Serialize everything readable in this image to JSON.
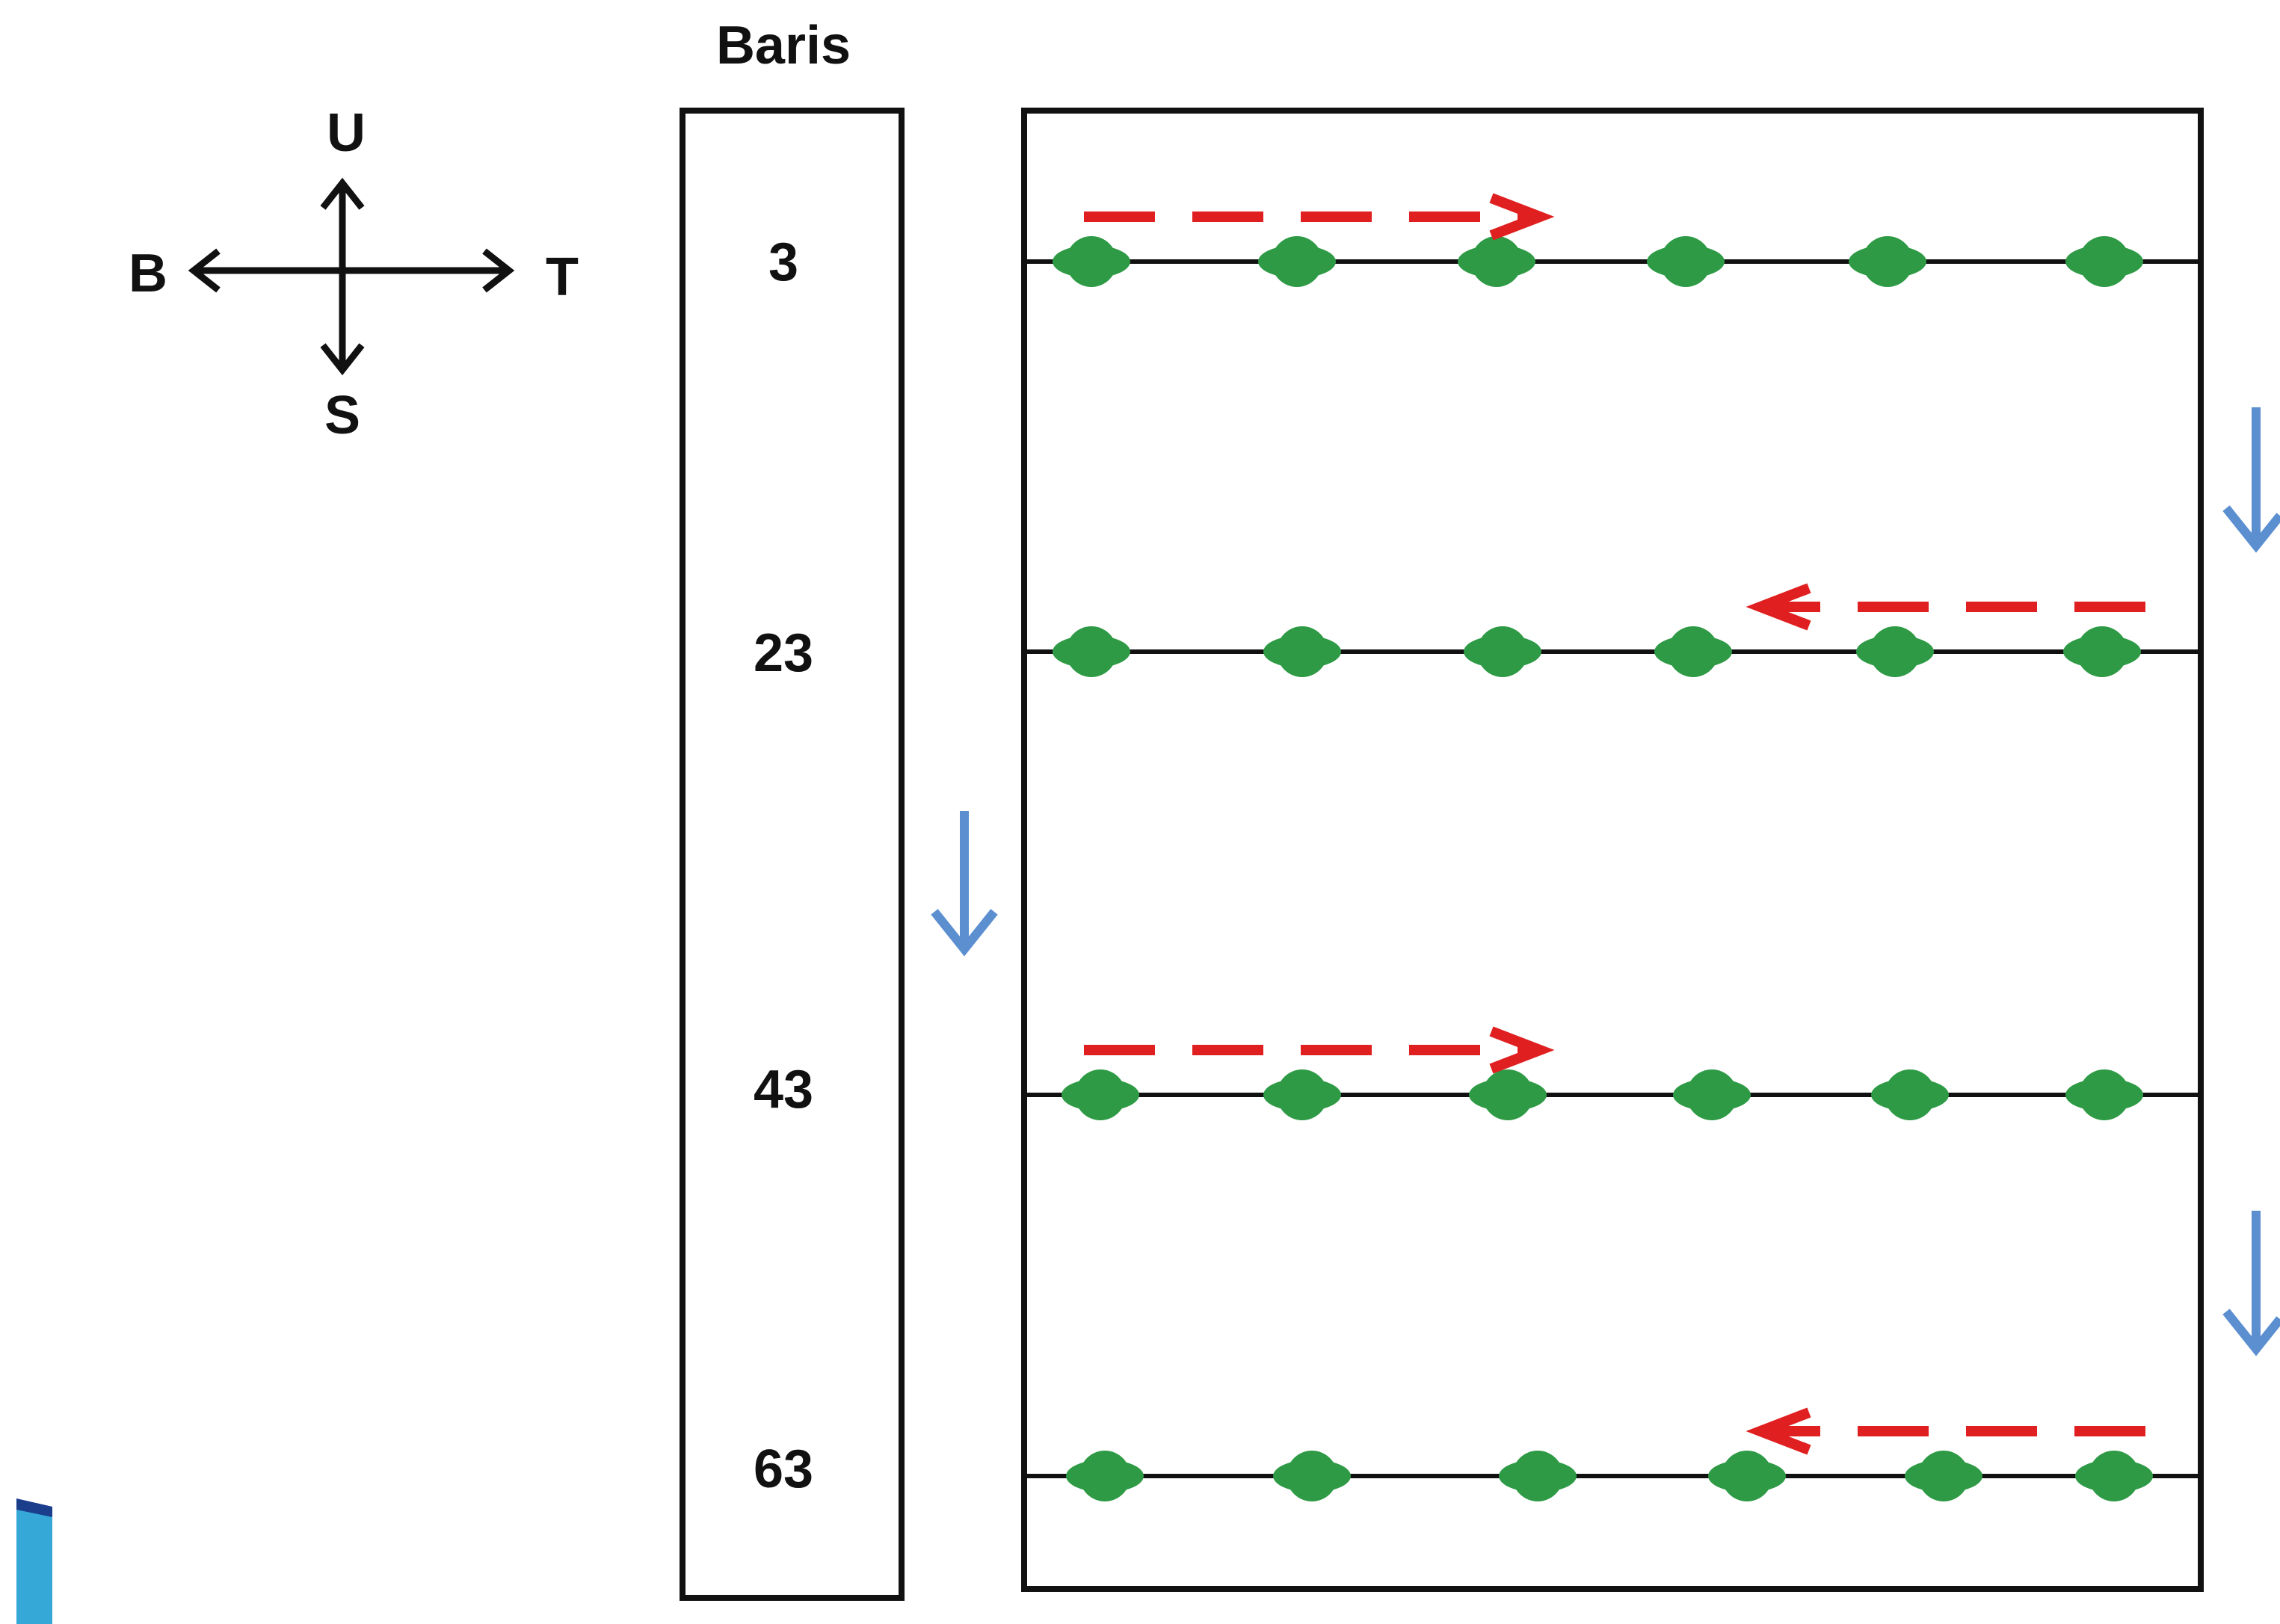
{
  "colors": {
    "ink": "#111111",
    "plant": "#2e9a45",
    "travel_arrow": "#e02020",
    "step_arrow": "#5b8fd0",
    "corner_accent": "#36a8d8"
  },
  "compass": {
    "north": "U",
    "south": "S",
    "west": "B",
    "east": "T"
  },
  "row_column": {
    "header": "Baris",
    "rows": [
      "3",
      "23",
      "43",
      "63"
    ]
  },
  "plot": {
    "plants_per_row": 6,
    "row_travel_directions": [
      "east",
      "west",
      "east",
      "west"
    ],
    "step_arrow_icon": "arrow-down-icon",
    "plant_icon": "plant-marker-icon"
  }
}
